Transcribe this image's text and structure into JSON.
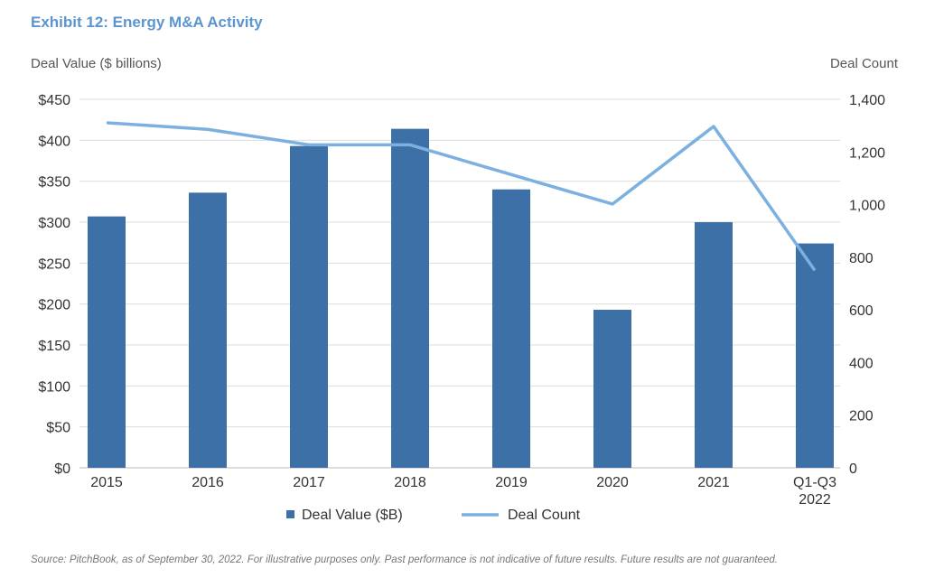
{
  "chart_data": {
    "type": "bar+line",
    "title": "Exhibit 12: Energy M&A Activity",
    "ylabel_left": "Deal Value ($ billions)",
    "ylabel_right": "Deal Count",
    "categories": [
      "2015",
      "2016",
      "2017",
      "2018",
      "2019",
      "2020",
      "2021",
      "Q1-Q3\n2022"
    ],
    "series": [
      {
        "name": "Deal Value ($B)",
        "type": "bar",
        "axis": "left",
        "color": "#3d70a6",
        "values": [
          307,
          336,
          393,
          414,
          340,
          193,
          300,
          274
        ]
      },
      {
        "name": "Deal Count",
        "type": "line",
        "axis": "right",
        "color": "#7bb0e0",
        "values": [
          1311,
          1286,
          1227,
          1227,
          1114,
          1002,
          1297,
          750
        ]
      }
    ],
    "ylim_left": [
      0,
      450
    ],
    "ylim_right": [
      0,
      1400
    ],
    "left_ticks": [
      "$0",
      "$50",
      "$100",
      "$150",
      "$200",
      "$250",
      "$300",
      "$350",
      "$400",
      "$450"
    ],
    "right_ticks": [
      "0",
      "200",
      "400",
      "600",
      "800",
      "1,000",
      "1,200",
      "1,400"
    ],
    "grid": true,
    "legend": "bottom"
  },
  "source": "Source: PitchBook, as of September 30, 2022. For illustrative purposes only. Past performance is not indicative of future results. Future results are not guaranteed."
}
